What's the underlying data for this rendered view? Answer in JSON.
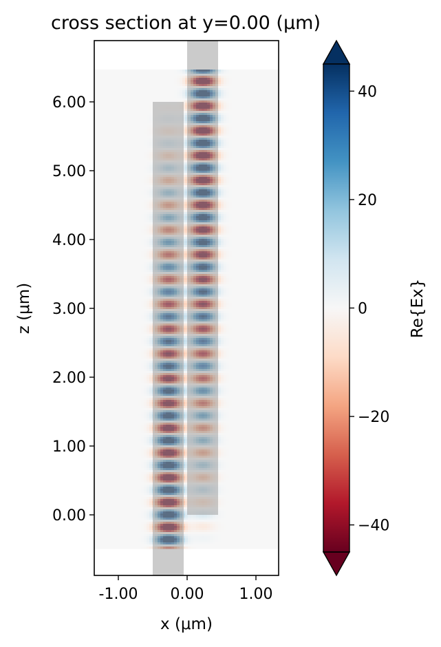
{
  "chart_data": {
    "type": "heatmap",
    "title": "cross section at y=0.00 (μm)",
    "xlabel": "x (μm)",
    "ylabel": "z (μm)",
    "colorbar_label": "Re{Ex}",
    "colormap": "RdBu",
    "xlim": [
      -1.35,
      1.33
    ],
    "ylim": [
      -0.88,
      6.89
    ],
    "x_ticks": [
      -1.0,
      0.0,
      1.0
    ],
    "x_tick_labels": [
      "-1.00",
      "0.00",
      "1.00"
    ],
    "y_ticks": [
      0,
      1,
      2,
      3,
      4,
      5,
      6
    ],
    "y_tick_labels": [
      "0.00",
      "1.00",
      "2.00",
      "3.00",
      "4.00",
      "5.00",
      "6.00"
    ],
    "colorbar_range": [
      -45,
      45
    ],
    "colorbar_ticks": [
      -40,
      -20,
      0,
      20,
      40
    ],
    "colorbar_tick_labels": [
      "−40",
      "−20",
      "0",
      "20",
      "40"
    ],
    "colorbar_extend": "both",
    "field_region": {
      "x": [
        -1.35,
        1.33
      ],
      "z": [
        -0.47,
        6.47
      ]
    },
    "structures": [
      {
        "name": "input waveguide",
        "x": [
          -0.5,
          -0.05
        ],
        "z": [
          -0.88,
          6.0
        ]
      },
      {
        "name": "output waveguide",
        "x": [
          0.0,
          0.45
        ],
        "z": [
          0.0,
          6.89
        ]
      }
    ],
    "field": {
      "amplitude": 45,
      "period_um": 0.36,
      "lower_guide_center_x": -0.27,
      "upper_guide_center_x": 0.23,
      "mode_halfwidth_um": 0.17,
      "coupling_length_um": 6.5
    }
  }
}
